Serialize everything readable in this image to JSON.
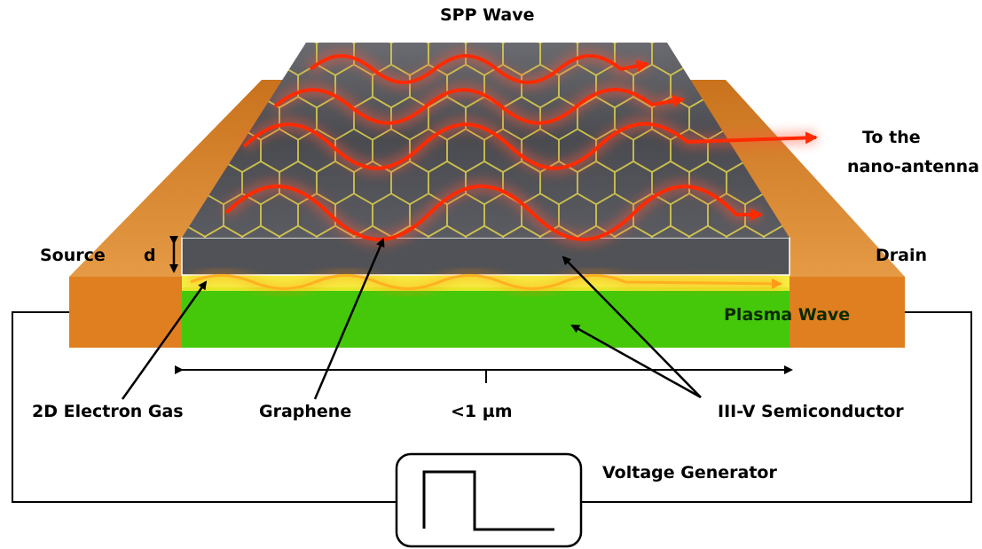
{
  "labels": {
    "spp_wave": "SPP Wave",
    "to_the": "To the",
    "nano_antenna": "nano-antenna",
    "source": "Source",
    "d": "d",
    "drain": "Drain",
    "plasma_wave": "Plasma Wave",
    "electron_gas": "2D Electron Gas",
    "graphene": "Graphene",
    "length": "<1 µm",
    "semiconductor": "III-V Semiconductor",
    "voltage_generator": "Voltage Generator"
  },
  "colors": {
    "contact_orange": "#d9822b",
    "contact_face": "#e07f1f",
    "substrate_green": "#45c80a",
    "semiconductor_grey": "#505257",
    "graphene_lattice": "#e8d84a",
    "spp_wave_red": "#ff2a00",
    "plasma_wave": "#ffb020",
    "electron_gas_yellow": "#f5ec30",
    "circuit_wire": "#000000"
  },
  "icons": [
    "square-pulse-icon",
    "hexagonal-lattice-pattern",
    "arrow-icon"
  ]
}
